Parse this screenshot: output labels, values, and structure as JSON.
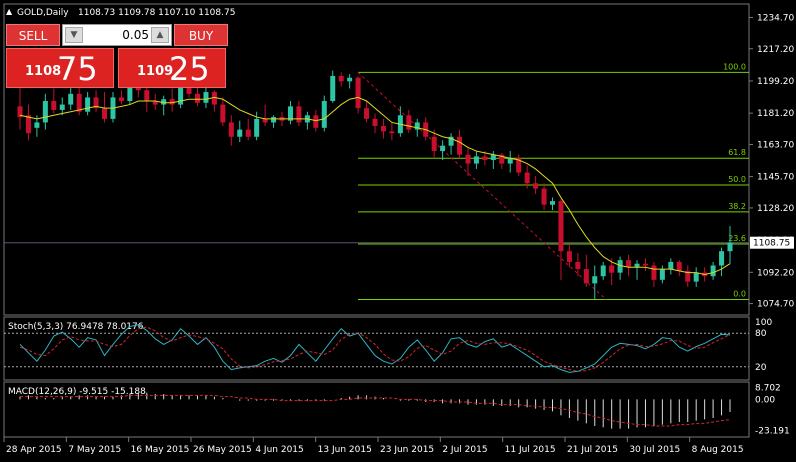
{
  "chart_header": {
    "symbol_timeframe": "GOLD,Daily",
    "ohlc": "1108.73 1109.78 1107.10 1108.75"
  },
  "trade_panel": {
    "sell_label": "SELL",
    "buy_label": "BUY",
    "lot": "0.05",
    "bid_prefix": "1108",
    "bid_suffix": "75",
    "ask_prefix": "1109",
    "ask_suffix": "25"
  },
  "indicator_labels": {
    "stoch": "Stoch(5,3,3) 76.9478 78.0176",
    "macd": "MACD(12,26,9) -9.515 -15.188"
  },
  "colors": {
    "background": "#000000",
    "bull": "#2ec4a6",
    "bear": "#c8102e",
    "fibo": "#7ad100",
    "ma": "#e0d820",
    "panel_red": "#d33333"
  },
  "chart_data": [
    {
      "type": "candlestick",
      "title": "GOLD,Daily",
      "ylim": [
        1070,
        1240
      ],
      "y_ticks": [
        "1234.70",
        "1217.20",
        "1199.20",
        "1181.20",
        "1163.70",
        "1145.70",
        "1128.20",
        "1110.20",
        "1092.20",
        "1074.70"
      ],
      "current_price": "1108.75",
      "x_ticks": [
        "28 Apr 2015",
        "7 May 2015",
        "16 May 2015",
        "26 May 2015",
        "4 Jun 2015",
        "13 Jun 2015",
        "23 Jun 2015",
        "2 Jul 2015",
        "11 Jul 2015",
        "21 Jul 2015",
        "30 Jul 2015",
        "8 Aug 2015"
      ],
      "fibonacci": [
        {
          "level": "100.0",
          "price": 1204
        },
        {
          "level": "61.8",
          "price": 1156
        },
        {
          "level": "50.0",
          "price": 1141
        },
        {
          "level": "38.2",
          "price": 1126
        },
        {
          "level": "23.6",
          "price": 1108
        },
        {
          "level": "0.0",
          "price": 1077
        }
      ],
      "candles": [
        {
          "o": 1185,
          "h": 1201,
          "l": 1172,
          "c": 1179
        },
        {
          "o": 1180,
          "h": 1186,
          "l": 1166,
          "c": 1170
        },
        {
          "o": 1173,
          "h": 1180,
          "l": 1168,
          "c": 1176
        },
        {
          "o": 1176,
          "h": 1192,
          "l": 1172,
          "c": 1188
        },
        {
          "o": 1188,
          "h": 1195,
          "l": 1181,
          "c": 1183
        },
        {
          "o": 1183,
          "h": 1190,
          "l": 1180,
          "c": 1186
        },
        {
          "o": 1186,
          "h": 1197,
          "l": 1183,
          "c": 1192
        },
        {
          "o": 1192,
          "h": 1196,
          "l": 1180,
          "c": 1182
        },
        {
          "o": 1182,
          "h": 1193,
          "l": 1180,
          "c": 1190
        },
        {
          "o": 1190,
          "h": 1194,
          "l": 1182,
          "c": 1184
        },
        {
          "o": 1184,
          "h": 1193,
          "l": 1176,
          "c": 1178
        },
        {
          "o": 1178,
          "h": 1193,
          "l": 1176,
          "c": 1190
        },
        {
          "o": 1190,
          "h": 1194,
          "l": 1186,
          "c": 1188
        },
        {
          "o": 1188,
          "h": 1202,
          "l": 1186,
          "c": 1198
        },
        {
          "o": 1198,
          "h": 1206,
          "l": 1190,
          "c": 1194
        },
        {
          "o": 1194,
          "h": 1196,
          "l": 1182,
          "c": 1188
        },
        {
          "o": 1188,
          "h": 1192,
          "l": 1183,
          "c": 1186
        },
        {
          "o": 1186,
          "h": 1191,
          "l": 1180,
          "c": 1189
        },
        {
          "o": 1189,
          "h": 1195,
          "l": 1182,
          "c": 1186
        },
        {
          "o": 1186,
          "h": 1199,
          "l": 1184,
          "c": 1197
        },
        {
          "o": 1197,
          "h": 1198,
          "l": 1190,
          "c": 1192
        },
        {
          "o": 1192,
          "h": 1199,
          "l": 1185,
          "c": 1187
        },
        {
          "o": 1187,
          "h": 1196,
          "l": 1184,
          "c": 1193
        },
        {
          "o": 1193,
          "h": 1194,
          "l": 1182,
          "c": 1186
        },
        {
          "o": 1186,
          "h": 1190,
          "l": 1174,
          "c": 1176
        },
        {
          "o": 1176,
          "h": 1180,
          "l": 1163,
          "c": 1168
        },
        {
          "o": 1168,
          "h": 1177,
          "l": 1165,
          "c": 1172
        },
        {
          "o": 1172,
          "h": 1178,
          "l": 1166,
          "c": 1168
        },
        {
          "o": 1168,
          "h": 1182,
          "l": 1166,
          "c": 1178
        },
        {
          "o": 1178,
          "h": 1186,
          "l": 1174,
          "c": 1176
        },
        {
          "o": 1176,
          "h": 1180,
          "l": 1173,
          "c": 1179
        },
        {
          "o": 1179,
          "h": 1182,
          "l": 1174,
          "c": 1177
        },
        {
          "o": 1177,
          "h": 1188,
          "l": 1175,
          "c": 1185
        },
        {
          "o": 1185,
          "h": 1188,
          "l": 1174,
          "c": 1176
        },
        {
          "o": 1176,
          "h": 1182,
          "l": 1172,
          "c": 1180
        },
        {
          "o": 1180,
          "h": 1183,
          "l": 1171,
          "c": 1173
        },
        {
          "o": 1173,
          "h": 1191,
          "l": 1171,
          "c": 1188
        },
        {
          "o": 1188,
          "h": 1205,
          "l": 1187,
          "c": 1202
        },
        {
          "o": 1202,
          "h": 1204,
          "l": 1196,
          "c": 1199
        },
        {
          "o": 1199,
          "h": 1203,
          "l": 1195,
          "c": 1201
        },
        {
          "o": 1201,
          "h": 1202,
          "l": 1181,
          "c": 1184
        },
        {
          "o": 1184,
          "h": 1188,
          "l": 1176,
          "c": 1178
        },
        {
          "o": 1178,
          "h": 1181,
          "l": 1170,
          "c": 1174
        },
        {
          "o": 1174,
          "h": 1178,
          "l": 1167,
          "c": 1171
        },
        {
          "o": 1171,
          "h": 1176,
          "l": 1166,
          "c": 1170
        },
        {
          "o": 1170,
          "h": 1185,
          "l": 1168,
          "c": 1180
        },
        {
          "o": 1180,
          "h": 1183,
          "l": 1170,
          "c": 1172
        },
        {
          "o": 1172,
          "h": 1178,
          "l": 1168,
          "c": 1176
        },
        {
          "o": 1176,
          "h": 1179,
          "l": 1166,
          "c": 1168
        },
        {
          "o": 1168,
          "h": 1172,
          "l": 1156,
          "c": 1160
        },
        {
          "o": 1160,
          "h": 1166,
          "l": 1155,
          "c": 1163
        },
        {
          "o": 1163,
          "h": 1170,
          "l": 1158,
          "c": 1168
        },
        {
          "o": 1168,
          "h": 1172,
          "l": 1156,
          "c": 1158
        },
        {
          "o": 1158,
          "h": 1162,
          "l": 1146,
          "c": 1153
        },
        {
          "o": 1153,
          "h": 1160,
          "l": 1150,
          "c": 1157
        },
        {
          "o": 1157,
          "h": 1160,
          "l": 1152,
          "c": 1155
        },
        {
          "o": 1155,
          "h": 1160,
          "l": 1150,
          "c": 1158
        },
        {
          "o": 1158,
          "h": 1159,
          "l": 1150,
          "c": 1153
        },
        {
          "o": 1153,
          "h": 1160,
          "l": 1148,
          "c": 1156
        },
        {
          "o": 1156,
          "h": 1158,
          "l": 1146,
          "c": 1148
        },
        {
          "o": 1148,
          "h": 1152,
          "l": 1139,
          "c": 1142
        },
        {
          "o": 1142,
          "h": 1146,
          "l": 1136,
          "c": 1139
        },
        {
          "o": 1139,
          "h": 1142,
          "l": 1127,
          "c": 1130
        },
        {
          "o": 1130,
          "h": 1134,
          "l": 1127,
          "c": 1132
        },
        {
          "o": 1132,
          "h": 1133,
          "l": 1088,
          "c": 1104
        },
        {
          "o": 1104,
          "h": 1108,
          "l": 1095,
          "c": 1098
        },
        {
          "o": 1098,
          "h": 1103,
          "l": 1090,
          "c": 1094
        },
        {
          "o": 1094,
          "h": 1102,
          "l": 1084,
          "c": 1086
        },
        {
          "o": 1086,
          "h": 1096,
          "l": 1077,
          "c": 1090
        },
        {
          "o": 1090,
          "h": 1098,
          "l": 1088,
          "c": 1096
        },
        {
          "o": 1096,
          "h": 1100,
          "l": 1085,
          "c": 1092
        },
        {
          "o": 1092,
          "h": 1101,
          "l": 1088,
          "c": 1099
        },
        {
          "o": 1099,
          "h": 1102,
          "l": 1090,
          "c": 1095
        },
        {
          "o": 1095,
          "h": 1099,
          "l": 1088,
          "c": 1097
        },
        {
          "o": 1097,
          "h": 1100,
          "l": 1093,
          "c": 1096
        },
        {
          "o": 1096,
          "h": 1098,
          "l": 1084,
          "c": 1088
        },
        {
          "o": 1088,
          "h": 1096,
          "l": 1086,
          "c": 1094
        },
        {
          "o": 1094,
          "h": 1100,
          "l": 1091,
          "c": 1098
        },
        {
          "o": 1098,
          "h": 1099,
          "l": 1090,
          "c": 1093
        },
        {
          "o": 1093,
          "h": 1096,
          "l": 1084,
          "c": 1087
        },
        {
          "o": 1087,
          "h": 1095,
          "l": 1084,
          "c": 1092
        },
        {
          "o": 1092,
          "h": 1095,
          "l": 1087,
          "c": 1090
        },
        {
          "o": 1090,
          "h": 1098,
          "l": 1088,
          "c": 1096
        },
        {
          "o": 1096,
          "h": 1106,
          "l": 1090,
          "c": 1104
        },
        {
          "o": 1104,
          "h": 1118,
          "l": 1097,
          "c": 1108.75
        }
      ],
      "ma": [
        1180,
        1179,
        1178,
        1179,
        1180,
        1181,
        1182,
        1183,
        1184,
        1185,
        1184,
        1184,
        1185,
        1186,
        1188,
        1188,
        1188,
        1187,
        1187,
        1188,
        1189,
        1189,
        1189,
        1190,
        1189,
        1186,
        1183,
        1181,
        1179,
        1178,
        1178,
        1178,
        1178,
        1178,
        1178,
        1177,
        1178,
        1182,
        1186,
        1189,
        1190,
        1188,
        1184,
        1180,
        1176,
        1175,
        1174,
        1173,
        1172,
        1170,
        1168,
        1167,
        1165,
        1162,
        1160,
        1159,
        1158,
        1157,
        1156,
        1155,
        1153,
        1150,
        1146,
        1142,
        1134,
        1127,
        1119,
        1112,
        1106,
        1101,
        1098,
        1096,
        1095,
        1095,
        1095,
        1094,
        1094,
        1094,
        1093,
        1092,
        1092,
        1091,
        1092,
        1094,
        1097
      ]
    },
    {
      "type": "line",
      "title": "Stoch(5,3,3) 76.9478 78.0176",
      "ylim": [
        0,
        100
      ],
      "y_ticks": [
        "100",
        "80",
        "20"
      ],
      "series": [
        {
          "values": [
            60,
            45,
            30,
            50,
            75,
            82,
            70,
            55,
            72,
            68,
            40,
            60,
            78,
            92,
            95,
            85,
            70,
            60,
            68,
            88,
            75,
            60,
            72,
            55,
            30,
            15,
            18,
            20,
            22,
            30,
            35,
            28,
            40,
            60,
            45,
            30,
            50,
            70,
            88,
            75,
            80,
            60,
            40,
            30,
            25,
            35,
            55,
            68,
            50,
            30,
            45,
            70,
            72,
            60,
            55,
            65,
            70,
            55,
            60,
            50,
            40,
            30,
            20,
            22,
            15,
            10,
            12,
            18,
            25,
            40,
            55,
            62,
            60,
            58,
            52,
            60,
            72,
            70,
            55,
            48,
            56,
            62,
            70,
            78,
            76.9
          ]
        },
        {
          "values": [
            55,
            50,
            42,
            40,
            52,
            68,
            74,
            68,
            66,
            66,
            60,
            56,
            60,
            76,
            88,
            91,
            84,
            72,
            66,
            72,
            77,
            74,
            70,
            62,
            52,
            34,
            21,
            18,
            20,
            24,
            29,
            31,
            34,
            42,
            48,
            45,
            42,
            50,
            69,
            78,
            81,
            72,
            60,
            43,
            32,
            30,
            38,
            53,
            58,
            50,
            42,
            48,
            62,
            67,
            62,
            60,
            63,
            63,
            61,
            55,
            50,
            40,
            30,
            24,
            19,
            15,
            12,
            13,
            18,
            28,
            40,
            52,
            59,
            60,
            56,
            57,
            61,
            67,
            66,
            58,
            53,
            55,
            63,
            70,
            78
          ]
        }
      ]
    },
    {
      "type": "bar",
      "title": "MACD(12,26,9) -9.515 -15.188",
      "ylim": [
        -26,
        10
      ],
      "y_ticks": [
        "8.702",
        "0.00",
        "-23.191"
      ],
      "histogram": [
        2,
        3,
        2,
        1,
        1,
        2,
        2,
        3,
        3,
        2,
        2,
        2,
        3,
        4,
        5,
        5,
        4,
        4,
        3,
        3,
        3,
        3,
        3,
        2,
        1,
        0,
        -1,
        -1,
        -1,
        -1,
        -1,
        -1,
        -1,
        -1,
        -1,
        -1,
        -1,
        0,
        1,
        2,
        3,
        3,
        2,
        1,
        0,
        -1,
        -1,
        -1,
        -2,
        -2,
        -3,
        -3,
        -3,
        -4,
        -4,
        -4,
        -5,
        -5,
        -5,
        -6,
        -6,
        -7,
        -8,
        -9,
        -12,
        -14,
        -16,
        -18,
        -20,
        -21,
        -22,
        -22,
        -22,
        -21,
        -21,
        -20,
        -19,
        -18,
        -17,
        -17,
        -16,
        -15,
        -14,
        -12,
        -9.5
      ],
      "signal": [
        2,
        2,
        2,
        2,
        2,
        2,
        2,
        2,
        2,
        2,
        2,
        2,
        2,
        3,
        3,
        3,
        3,
        3,
        3,
        3,
        3,
        3,
        3,
        3,
        2,
        2,
        1,
        1,
        0,
        0,
        0,
        -1,
        -1,
        -1,
        -1,
        -1,
        -1,
        -1,
        0,
        0,
        1,
        1,
        1,
        1,
        1,
        0,
        0,
        0,
        -1,
        -1,
        -1,
        -2,
        -2,
        -2,
        -3,
        -3,
        -3,
        -4,
        -4,
        -4,
        -5,
        -5,
        -6,
        -6,
        -7,
        -8,
        -10,
        -11,
        -13,
        -14,
        -16,
        -17,
        -18,
        -19,
        -19,
        -20,
        -20,
        -20,
        -19,
        -19,
        -18,
        -18,
        -17,
        -16,
        -15.2
      ]
    }
  ]
}
